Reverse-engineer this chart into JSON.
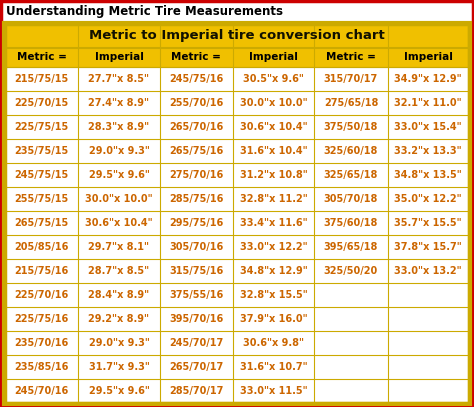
{
  "title": "Understanding Metric Tire Measurements",
  "chart_title": "Metric to Imperial tire conversion chart",
  "header": [
    "Metric =",
    "Imperial",
    "Metric =",
    "Imperial",
    "Metric =",
    "Imperial"
  ],
  "rows": [
    [
      "215/75/15",
      "27.7\"x 8.5\"",
      "245/75/16",
      "30.5\"x 9.6\"",
      "315/70/17",
      "34.9\"x 12.9\""
    ],
    [
      "225/70/15",
      "27.4\"x 8.9\"",
      "255/70/16",
      "30.0\"x 10.0\"",
      "275/65/18",
      "32.1\"x 11.0\""
    ],
    [
      "225/75/15",
      "28.3\"x 8.9\"",
      "265/70/16",
      "30.6\"x 10.4\"",
      "375/50/18",
      "33.0\"x 15.4\""
    ],
    [
      "235/75/15",
      "29.0\"x 9.3\"",
      "265/75/16",
      "31.6\"x 10.4\"",
      "325/60/18",
      "33.2\"x 13.3\""
    ],
    [
      "245/75/15",
      "29.5\"x 9.6\"",
      "275/70/16",
      "31.2\"x 10.8\"",
      "325/65/18",
      "34.8\"x 13.5\""
    ],
    [
      "255/75/15",
      "30.0\"x 10.0\"",
      "285/75/16",
      "32.8\"x 11.2\"",
      "305/70/18",
      "35.0\"x 12.2\""
    ],
    [
      "265/75/15",
      "30.6\"x 10.4\"",
      "295/75/16",
      "33.4\"x 11.6\"",
      "375/60/18",
      "35.7\"x 15.5\""
    ],
    [
      "205/85/16",
      "29.7\"x 8.1\"",
      "305/70/16",
      "33.0\"x 12.2\"",
      "395/65/18",
      "37.8\"x 15.7\""
    ],
    [
      "215/75/16",
      "28.7\"x 8.5\"",
      "315/75/16",
      "34.8\"x 12.9\"",
      "325/50/20",
      "33.0\"x 13.2\""
    ],
    [
      "225/70/16",
      "28.4\"x 8.9\"",
      "375/55/16",
      "32.8\"x 15.5\"",
      "",
      ""
    ],
    [
      "225/75/16",
      "29.2\"x 8.9\"",
      "395/70/16",
      "37.9\"x 16.0\"",
      "",
      ""
    ],
    [
      "235/70/16",
      "29.0\"x 9.3\"",
      "245/70/17",
      "30.6\"x 9.8\"",
      "",
      ""
    ],
    [
      "235/85/16",
      "31.7\"x 9.3\"",
      "265/70/17",
      "31.6\"x 10.7\"",
      "",
      ""
    ],
    [
      "245/70/16",
      "29.5\"x 9.6\"",
      "285/70/17",
      "33.0\"x 11.5\"",
      "",
      ""
    ]
  ],
  "outer_border_color": "#cc0000",
  "table_border_color": "#ccaa00",
  "header_bg": "#f0c000",
  "chart_title_bg": "#f0c000",
  "title_color": "#000000",
  "header_text_color": "#000000",
  "cell_text_color": "#cc6600",
  "title_fontsize": 8.5,
  "chart_title_fontsize": 9.5,
  "cell_fontsize": 7.0,
  "header_fontsize": 7.5,
  "figw": 4.74,
  "figh": 4.07,
  "dpi": 100
}
